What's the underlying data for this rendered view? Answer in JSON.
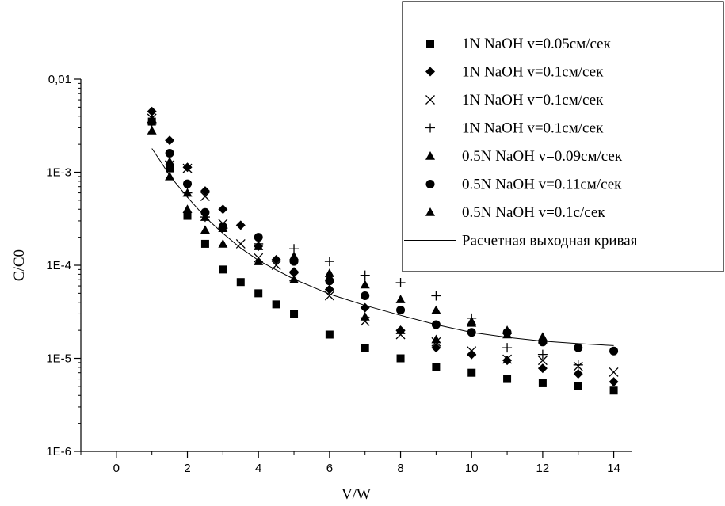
{
  "chart_data": {
    "type": "scatter",
    "xlabel": "V/W",
    "ylabel": "C/C0",
    "xlim": [
      -1,
      14.5
    ],
    "ylim": [
      1e-06,
      0.01
    ],
    "y_scale": "log",
    "x_ticks": [
      0,
      2,
      4,
      6,
      8,
      10,
      12,
      14
    ],
    "x_tick_labels": [
      "0",
      "2",
      "4",
      "6",
      "8",
      "10",
      "12",
      "14"
    ],
    "y_ticks": [
      1e-06,
      1e-05,
      0.0001,
      0.001,
      0.01
    ],
    "y_tick_labels": [
      "1E-6",
      "1E-5",
      "1E-4",
      "1E-3",
      "0,01"
    ],
    "grid": false,
    "legend_position": "top-right",
    "series": [
      {
        "name": "1N NaOH v=0.05см/сек",
        "marker": "square",
        "x": [
          1,
          1.5,
          2,
          2.5,
          3,
          3.5,
          4,
          4.5,
          5,
          6,
          7,
          8,
          9,
          10,
          11,
          12,
          13,
          14
        ],
        "y": [
          0.0035,
          0.0011,
          0.00034,
          0.00017,
          9e-05,
          6.6e-05,
          5e-05,
          3.8e-05,
          3e-05,
          1.8e-05,
          1.3e-05,
          1e-05,
          8e-06,
          7e-06,
          6e-06,
          5.4e-06,
          5e-06,
          4.5e-06
        ]
      },
      {
        "name": "1N NaOH v=0.1см/сек",
        "marker": "diamond",
        "x": [
          1,
          1.5,
          2,
          2.5,
          3,
          3.5,
          4,
          4.5,
          5,
          6,
          7,
          8,
          9,
          10,
          11,
          12,
          13,
          14
        ],
        "y": [
          0.0045,
          0.0022,
          0.00113,
          0.00063,
          0.0004,
          0.00027,
          0.00016,
          0.000115,
          8.5e-05,
          5.5e-05,
          3.5e-05,
          2e-05,
          1.3e-05,
          1.1e-05,
          9.5e-06,
          7.8e-06,
          6.8e-06,
          5.6e-06
        ]
      },
      {
        "name": "1N NaOH v=0.1см/сек",
        "marker": "cross",
        "x": [
          1,
          1.5,
          2,
          2.5,
          3,
          3.5,
          4,
          4.5,
          5,
          6,
          7,
          8,
          9,
          10,
          11,
          12,
          13,
          14
        ],
        "y": [
          0.0038,
          0.0012,
          0.0011,
          0.00055,
          0.00028,
          0.00017,
          0.00012,
          0.0001,
          7.5e-05,
          4.7e-05,
          2.5e-05,
          1.8e-05,
          1.5e-05,
          1.2e-05,
          9.8e-06,
          9.5e-06,
          8.2e-06,
          7.1e-06
        ]
      },
      {
        "name": "1N NaOH v=0.1см/сек",
        "marker": "plus",
        "x": [
          1,
          1.5,
          2,
          2.5,
          3,
          4,
          5,
          6,
          7,
          8,
          9,
          10,
          11,
          12,
          13
        ],
        "y": [
          0.0033,
          0.0013,
          0.0006,
          0.00033,
          0.00025,
          0.00017,
          0.00015,
          0.00011,
          7.8e-05,
          6.5e-05,
          4.7e-05,
          2.7e-05,
          1.3e-05,
          1.1e-05,
          8.5e-06
        ]
      },
      {
        "name": "0.5N NaOH v=0.09см/сек",
        "marker": "triangle",
        "x": [
          1,
          1.5,
          2,
          2.5,
          3,
          4,
          5,
          6,
          7,
          8,
          9,
          10,
          11,
          12
        ],
        "y": [
          0.0028,
          0.0009,
          0.0004,
          0.00024,
          0.00017,
          0.00011,
          0.000125,
          8.2e-05,
          6.2e-05,
          4.3e-05,
          3.3e-05,
          2.5e-05,
          2e-05,
          1.7e-05
        ]
      },
      {
        "name": "0.5N NaOH v=0.11см/сек",
        "marker": "circle",
        "x": [
          1.5,
          2,
          2.5,
          3,
          4,
          5,
          6,
          7,
          8,
          9,
          10,
          11,
          12,
          13,
          14
        ],
        "y": [
          0.0016,
          0.00075,
          0.00037,
          0.00026,
          0.0002,
          0.00011,
          6.8e-05,
          4.7e-05,
          3.3e-05,
          2.3e-05,
          1.9e-05,
          1.9e-05,
          1.5e-05,
          1.3e-05,
          1.2e-05
        ]
      },
      {
        "name": "0.5N NaOH v=0.1с/сек",
        "marker": "triangle",
        "x": [
          1,
          1.5,
          2,
          2.5,
          3,
          4,
          5,
          6,
          7,
          8,
          9,
          10,
          11,
          12
        ],
        "y": [
          0.0037,
          0.0013,
          0.0006,
          0.00033,
          0.00025,
          0.00016,
          7e-05,
          7.5e-05,
          2.8e-05,
          2e-05,
          1.6e-05,
          2.4e-05,
          1.8e-05,
          1.6e-05
        ]
      },
      {
        "name": "Расчетная выходная кривая",
        "marker": "line",
        "x": [
          1,
          1.25,
          1.5,
          2,
          2.5,
          3,
          3.5,
          4,
          4.5,
          5,
          6,
          7,
          8,
          9,
          10,
          11,
          12,
          13,
          14
        ],
        "y": [
          0.0018,
          0.0013,
          0.00092,
          0.00054,
          0.00033,
          0.00022,
          0.000153,
          0.000113,
          8.9e-05,
          7.1e-05,
          4.9e-05,
          3.7e-05,
          2.9e-05,
          2.3e-05,
          1.9e-05,
          1.68e-05,
          1.53e-05,
          1.44e-05,
          1.37e-05
        ]
      }
    ]
  }
}
